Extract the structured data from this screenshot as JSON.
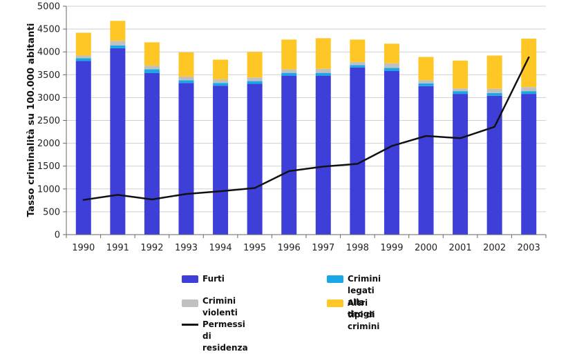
{
  "chart_data": {
    "type": "bar",
    "stacked": true,
    "title": "",
    "xlabel": "",
    "ylabel": "Tasso criminalità su 100.000 abitanti",
    "ylim": [
      0,
      5000
    ],
    "yticks": [
      0,
      500,
      1000,
      1500,
      2000,
      2500,
      3000,
      3500,
      4000,
      4500,
      5000
    ],
    "grid": true,
    "legend_position": "bottom",
    "categories": [
      "1990",
      "1991",
      "1992",
      "1993",
      "1994",
      "1995",
      "1996",
      "1997",
      "1998",
      "1999",
      "2000",
      "2001",
      "2002",
      "2003"
    ],
    "series": [
      {
        "name": "Furti",
        "kind": "bar",
        "color": "#3d3fd8",
        "values": [
          3800,
          4080,
          3540,
          3320,
          3260,
          3300,
          3480,
          3480,
          3660,
          3580,
          3250,
          3080,
          3040,
          3080
        ]
      },
      {
        "name": "Crimini legati alla droga",
        "kind": "bar",
        "color": "#1aa7e8",
        "values": [
          60,
          60,
          80,
          60,
          60,
          60,
          60,
          60,
          50,
          70,
          60,
          60,
          60,
          60
        ]
      },
      {
        "name": "Crimini violenti",
        "kind": "bar",
        "color": "#c0c0c0",
        "values": [
          60,
          100,
          80,
          80,
          80,
          80,
          80,
          90,
          70,
          100,
          70,
          60,
          90,
          90
        ]
      },
      {
        "name": "Altri tipi di crimini",
        "kind": "bar",
        "color": "#ffc726",
        "values": [
          500,
          440,
          510,
          530,
          430,
          560,
          650,
          670,
          490,
          430,
          510,
          610,
          730,
          1060
        ]
      },
      {
        "name": "Permessi di residenza",
        "kind": "line",
        "color": "#111111",
        "values": [
          760,
          870,
          770,
          890,
          950,
          1020,
          1390,
          1490,
          1550,
          1940,
          2160,
          2110,
          2360,
          3880
        ]
      }
    ]
  },
  "legend": {
    "furti": "Furti",
    "droga": "Crimini legati alla droga",
    "violenti": "Crimini violenti",
    "altri": "Altri tipi di crimini",
    "permessi": "Permessi di residenza"
  },
  "colors": {
    "furti": "#3d3fd8",
    "droga": "#1aa7e8",
    "violenti": "#c0c0c0",
    "altri": "#ffc726",
    "line": "#111111",
    "grid": "#cfcfcf"
  }
}
